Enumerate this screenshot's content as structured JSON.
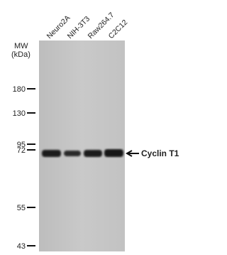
{
  "figure": {
    "lanes": [
      "Neuro2A",
      "NIH-3T3",
      "Raw264.7",
      "C2C12"
    ],
    "mw_label": {
      "line1": "MW",
      "line2": "(kDa)"
    },
    "markers": [
      "180",
      "130",
      "95",
      "72",
      "55",
      "43"
    ],
    "band_label": "Cyclin T1"
  }
}
